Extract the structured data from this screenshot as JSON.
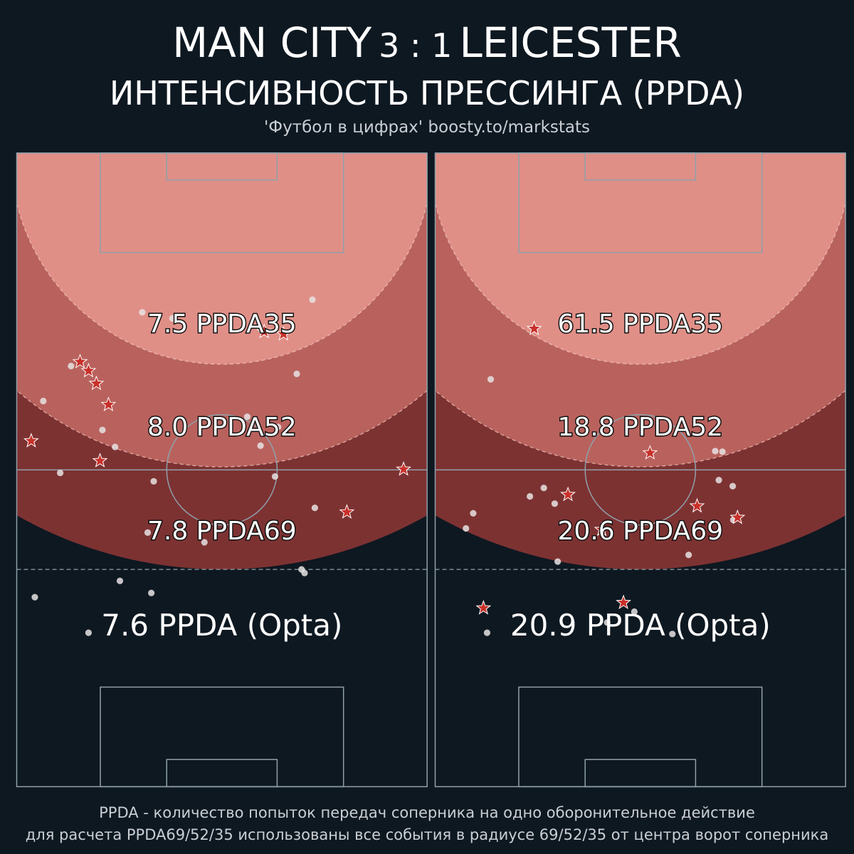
{
  "header": {
    "home_team": "MAN CITY",
    "score": "3 : 1",
    "away_team": "LEICESTER",
    "subtitle": "ИНТЕНСИВНОСТЬ ПРЕССИНГА (PPDA)",
    "credit": "'Футбол в цифрах' boosty.to/markstats"
  },
  "footer": {
    "line1": "PPDA - количество попыток передач соперника на одно оборонительное действие",
    "line2": "для расчета PPDA69/52/35 использованы все события в радиусе 69/52/35 от центра ворот соперника"
  },
  "colors": {
    "background": "#0e1821",
    "zone35": "#e08f87",
    "zone52": "#b9625d",
    "zone69": "#7d3232",
    "line": "#8fa0aa",
    "star": "#c8302a"
  },
  "chart_data": [
    {
      "type": "scatter",
      "team": "MAN CITY",
      "zones": [
        {
          "radius": 35,
          "label": "7.5 PPDA35"
        },
        {
          "radius": 52,
          "label": "8.0 PPDA52"
        },
        {
          "radius": 69,
          "label": "7.8 PPDA69"
        }
      ],
      "opta_label": "7.6 PPDA (Opta)",
      "defensive_actions": [
        [
          10.5,
          70.4
        ],
        [
          11.9,
          68.9
        ],
        [
          13.2,
          66.8
        ],
        [
          15.2,
          63.3
        ],
        [
          2.4,
          57.3
        ],
        [
          13.8,
          54.0
        ],
        [
          41.0,
          75.4
        ],
        [
          44.2,
          75.0
        ],
        [
          64.1,
          52.6
        ],
        [
          54.7,
          45.5
        ]
      ],
      "opponent_passes": [
        [
          20.8,
          78.6
        ],
        [
          25.8,
          77.6
        ],
        [
          9.0,
          69.7
        ],
        [
          4.4,
          63.9
        ],
        [
          14.2,
          59.1
        ],
        [
          16.3,
          56.3
        ],
        [
          7.2,
          52.0
        ],
        [
          22.7,
          50.6
        ],
        [
          38.2,
          61.3
        ],
        [
          43.3,
          59.6
        ],
        [
          40.4,
          56.5
        ],
        [
          46.4,
          68.4
        ],
        [
          49.0,
          80.7
        ],
        [
          42.8,
          51.4
        ],
        [
          49.4,
          46.2
        ],
        [
          21.7,
          42.1
        ],
        [
          31.1,
          40.5
        ],
        [
          47.2,
          36.0
        ],
        [
          47.7,
          35.4
        ],
        [
          17.1,
          34.1
        ],
        [
          22.3,
          32.1
        ],
        [
          3.0,
          31.4
        ],
        [
          11.9,
          25.5
        ]
      ]
    },
    {
      "type": "scatter",
      "team": "LEICESTER",
      "zones": [
        {
          "radius": 35,
          "label": "61.5 PPDA35"
        },
        {
          "radius": 52,
          "label": "18.8 PPDA52"
        },
        {
          "radius": 69,
          "label": "20.6 PPDA69"
        }
      ],
      "opta_label": "20.9 PPDA (Opta)",
      "defensive_actions": [
        [
          16.4,
          75.9
        ],
        [
          35.6,
          55.3
        ],
        [
          22.0,
          48.4
        ],
        [
          43.4,
          46.5
        ],
        [
          27.6,
          42.6
        ],
        [
          50.1,
          44.6
        ],
        [
          31.2,
          30.5
        ],
        [
          8.0,
          29.6
        ]
      ],
      "opponent_passes": [
        [
          9.2,
          67.5
        ],
        [
          46.4,
          55.6
        ],
        [
          47.6,
          55.5
        ],
        [
          47.0,
          50.8
        ],
        [
          49.3,
          49.8
        ],
        [
          15.7,
          48.1
        ],
        [
          18.0,
          49.5
        ],
        [
          19.8,
          46.9
        ],
        [
          6.3,
          45.3
        ],
        [
          5.1,
          42.8
        ],
        [
          49.4,
          44.2
        ],
        [
          20.3,
          37.3
        ],
        [
          42.0,
          38.4
        ],
        [
          33.0,
          29.0
        ],
        [
          28.5,
          27.2
        ],
        [
          8.6,
          25.5
        ],
        [
          39.3,
          25.3
        ]
      ]
    }
  ]
}
